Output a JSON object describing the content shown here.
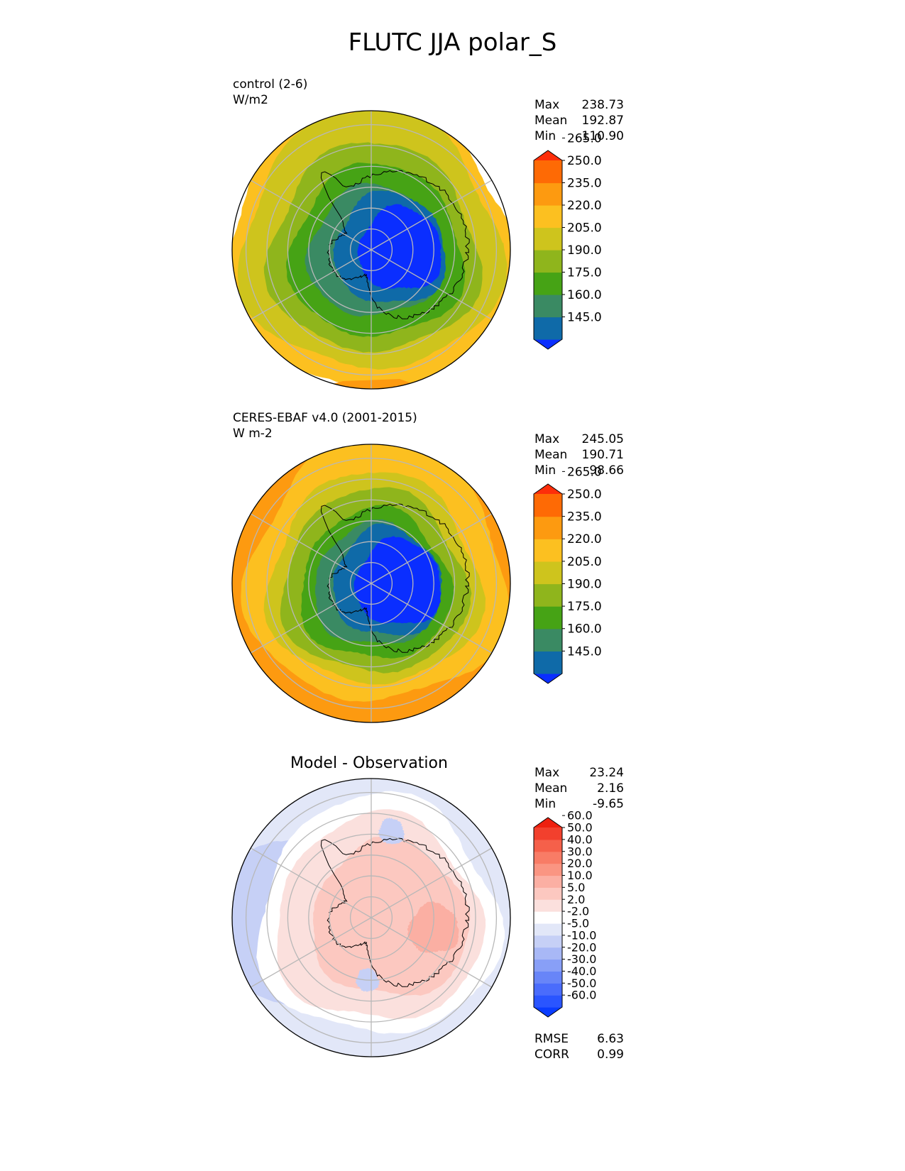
{
  "title": "FLUTC JJA polar_S",
  "chart_data": [
    {
      "type": "heatmap",
      "name": "control",
      "label_line1": "control (2-6)",
      "label_line2": "W/m2",
      "stats": [
        {
          "label": "Max",
          "value": "238.73"
        },
        {
          "label": "Mean",
          "value": "192.87"
        },
        {
          "label": "Min",
          "value": "110.90"
        }
      ],
      "colorbar": {
        "levels": [
          "145.0",
          "160.0",
          "175.0",
          "190.0",
          "205.0",
          "220.0",
          "235.0",
          "250.0",
          "265.0"
        ],
        "colors": [
          "#0a2eff",
          "#0f6aa8",
          "#3a8a63",
          "#46a315",
          "#8fb51c",
          "#cec41d",
          "#fcc020",
          "#fd9a10",
          "#fe6a05",
          "#fd2e0a"
        ]
      },
      "projection": "south polar stereographic"
    },
    {
      "type": "heatmap",
      "name": "observation",
      "label_line1": "CERES-EBAF v4.0 (2001-2015)",
      "label_line2": "W m-2",
      "stats": [
        {
          "label": "Max",
          "value": "245.05"
        },
        {
          "label": "Mean",
          "value": "190.71"
        },
        {
          "label": "Min",
          "value": "98.66"
        }
      ],
      "colorbar": {
        "levels": [
          "145.0",
          "160.0",
          "175.0",
          "190.0",
          "205.0",
          "220.0",
          "235.0",
          "250.0",
          "265.0"
        ],
        "colors": [
          "#0a2eff",
          "#0f6aa8",
          "#3a8a63",
          "#46a315",
          "#8fb51c",
          "#cec41d",
          "#fcc020",
          "#fd9a10",
          "#fe6a05",
          "#fd2e0a"
        ]
      },
      "projection": "south polar stereographic"
    },
    {
      "type": "heatmap",
      "name": "difference",
      "title": "Model - Observation",
      "stats": [
        {
          "label": "Max",
          "value": "23.24"
        },
        {
          "label": "Mean",
          "value": "2.16"
        },
        {
          "label": "Min",
          "value": "-9.65"
        }
      ],
      "metrics": [
        {
          "label": "RMSE",
          "value": "6.63"
        },
        {
          "label": "CORR",
          "value": "0.99"
        }
      ],
      "colorbar": {
        "levels": [
          "-60.0",
          "-50.0",
          "-40.0",
          "-30.0",
          "-20.0",
          "-10.0",
          "-5.0",
          "-2.0",
          "2.0",
          "5.0",
          "10.0",
          "20.0",
          "30.0",
          "40.0",
          "50.0",
          "60.0"
        ],
        "colors": [
          "#0a3cff",
          "#2a55ff",
          "#4a6cfc",
          "#6885f8",
          "#889ff7",
          "#a8b8f6",
          "#c6d0f6",
          "#e2e7f8",
          "#ffffff",
          "#fbe0dd",
          "#fcc8c0",
          "#fbafa3",
          "#fa9582",
          "#f87c66",
          "#f5604a",
          "#f2402d",
          "#ee200f"
        ]
      },
      "projection": "south polar stereographic"
    }
  ]
}
